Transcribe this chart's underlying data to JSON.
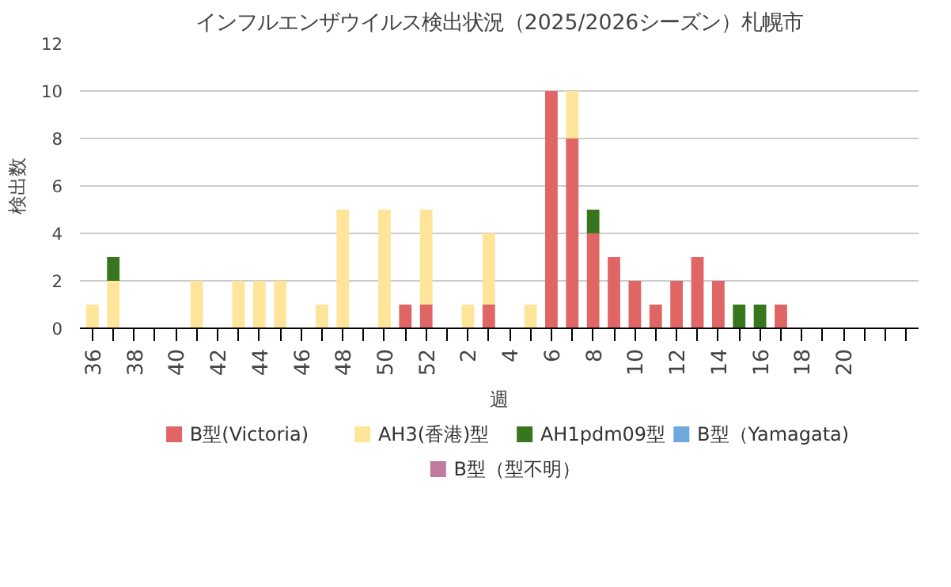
{
  "chart_data": {
    "type": "bar",
    "title": "インフルエンザウイルス検出状況（2025/2026シーズン）札幌市",
    "xlabel": "週",
    "ylabel": "検出数",
    "categories": [
      "36",
      null,
      "38",
      null,
      "40",
      null,
      "42",
      null,
      "44",
      null,
      "46",
      null,
      "48",
      null,
      "50",
      null,
      "52",
      null,
      "2",
      null,
      "4",
      null,
      "6",
      null,
      "8",
      null,
      "10",
      null,
      "12",
      null,
      "14",
      null,
      "16",
      null,
      "18",
      null,
      "20",
      null,
      null,
      null
    ],
    "stacked": true,
    "ylim": [
      0,
      12
    ],
    "yticks": [
      0,
      2,
      4,
      6,
      8,
      10,
      12
    ],
    "grid": "y",
    "legend": "bottom",
    "series": [
      {
        "name": "B型(Victoria)",
        "color": "#e06666",
        "values": [
          0,
          0,
          0,
          0,
          0,
          0,
          0,
          0,
          0,
          0,
          0,
          0,
          0,
          0,
          0,
          1,
          1,
          0,
          0,
          1,
          0,
          0,
          10,
          8,
          4,
          3,
          2,
          1,
          2,
          3,
          2,
          0,
          0,
          1,
          0,
          0,
          0,
          0,
          0,
          0
        ]
      },
      {
        "name": "AH3(香港)型",
        "color": "#ffe599",
        "values": [
          1,
          2,
          0,
          0,
          0,
          2,
          0,
          2,
          2,
          2,
          0,
          1,
          5,
          0,
          5,
          0,
          4,
          0,
          1,
          3,
          0,
          1,
          0,
          2,
          0,
          0,
          0,
          0,
          0,
          0,
          0,
          0,
          0,
          0,
          0,
          0,
          0,
          0,
          0,
          0
        ]
      },
      {
        "name": "AH1pdm09型",
        "color": "#38761d",
        "values": [
          0,
          1,
          0,
          0,
          0,
          0,
          0,
          0,
          0,
          0,
          0,
          0,
          0,
          0,
          0,
          0,
          0,
          0,
          0,
          0,
          0,
          0,
          0,
          0,
          1,
          0,
          0,
          0,
          0,
          0,
          0,
          1,
          1,
          0,
          0,
          0,
          0,
          0,
          0,
          0
        ]
      },
      {
        "name": "B型（Yamagata)",
        "color": "#6fa8dc",
        "values": [
          0,
          0,
          0,
          0,
          0,
          0,
          0,
          0,
          0,
          0,
          0,
          0,
          0,
          0,
          0,
          0,
          0,
          0,
          0,
          0,
          0,
          0,
          0,
          0,
          0,
          0,
          0,
          0,
          0,
          0,
          0,
          0,
          0,
          0,
          0,
          0,
          0,
          0,
          0,
          0
        ]
      },
      {
        "name": "B型（型不明）",
        "color": "#c27ba0",
        "values": [
          0,
          0,
          0,
          0,
          0,
          0,
          0,
          0,
          0,
          0,
          0,
          0,
          0,
          0,
          0,
          0,
          0,
          0,
          0,
          0,
          0,
          0,
          0,
          0,
          0,
          0,
          0,
          0,
          0,
          0,
          0,
          0,
          0,
          0,
          0,
          0,
          0,
          0,
          0,
          0
        ]
      }
    ]
  }
}
